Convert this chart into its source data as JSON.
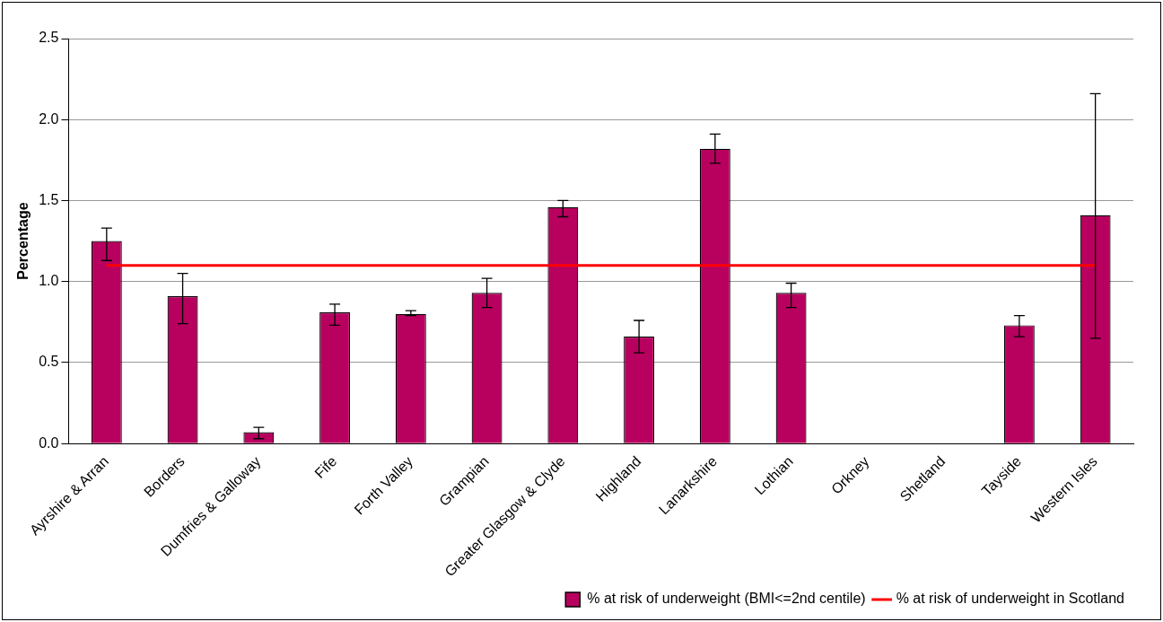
{
  "chart_data": {
    "type": "bar",
    "ylabel": "Percentage",
    "categories": [
      "Ayrshire & Arran",
      "Borders",
      "Dumfries & Galloway",
      "Fife",
      "Forth Valley",
      "Grampian",
      "Greater Glasgow & Clyde",
      "Highland",
      "Lanarkshire",
      "Lothian",
      "Orkney",
      "Shetland",
      "Tayside",
      "Western Isles"
    ],
    "series": [
      {
        "name": "% at risk of underweight (BMI<=2nd centile)",
        "color": "#b8005f",
        "values": [
          1.25,
          0.91,
          0.07,
          0.81,
          0.8,
          0.93,
          1.46,
          0.66,
          1.82,
          0.93,
          null,
          null,
          0.73,
          1.41
        ],
        "errors": [
          [
            1.13,
            1.33
          ],
          [
            0.74,
            1.05
          ],
          [
            0.03,
            0.1
          ],
          [
            0.73,
            0.86
          ],
          [
            0.79,
            0.82
          ],
          [
            0.84,
            1.02
          ],
          [
            1.4,
            1.5
          ],
          [
            0.56,
            0.76
          ],
          [
            1.73,
            1.91
          ],
          [
            0.84,
            0.99
          ],
          null,
          null,
          [
            0.66,
            0.79
          ],
          [
            0.65,
            2.16
          ]
        ]
      },
      {
        "name": "% at risk of underweight in Scotland",
        "type": "line",
        "color": "#ff0000",
        "values": [
          1.1,
          1.1,
          1.1,
          1.1,
          1.1,
          1.1,
          1.1,
          1.1,
          1.1,
          1.1,
          1.1,
          1.1,
          1.1,
          1.1
        ]
      }
    ],
    "ylim": [
      0,
      2.5
    ],
    "yticks": [
      {
        "value": 0,
        "label": "0.0"
      },
      {
        "value": 0.5,
        "label": "0.5"
      },
      {
        "value": 1,
        "label": "1.0"
      },
      {
        "value": 1.5,
        "label": "1.5"
      },
      {
        "value": 2,
        "label": "2.0"
      },
      {
        "value": 2.5,
        "label": "2.5"
      }
    ],
    "grid": "y",
    "legend": "bottom right",
    "marker": "none"
  }
}
